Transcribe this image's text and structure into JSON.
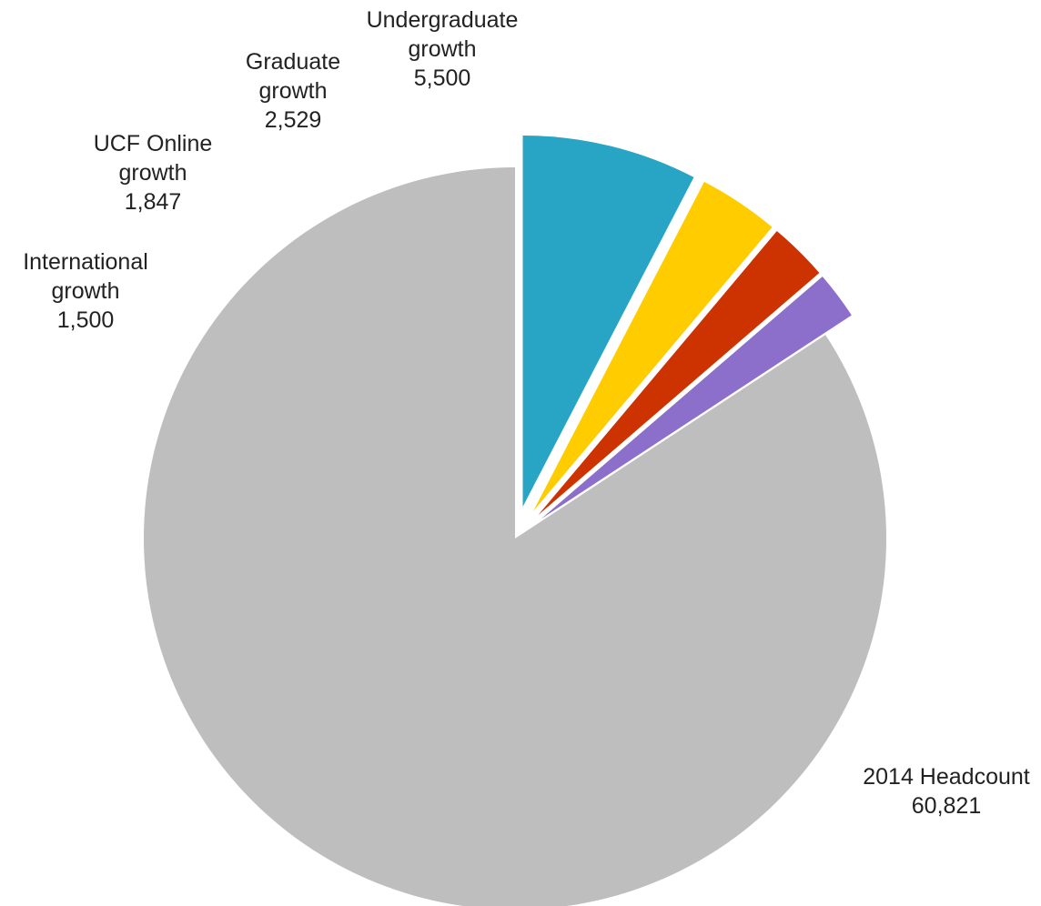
{
  "chart_data": {
    "type": "pie",
    "title": "",
    "start_angle_deg": 0,
    "direction": "counterclockwise",
    "slices": [
      {
        "name": "2014 Headcount",
        "value": 60821,
        "value_label": "60,821",
        "label_lines": [
          "2014 Headcount",
          "60,821"
        ],
        "color": "#bebebe",
        "exploded": false
      },
      {
        "name": "International growth",
        "value": 1500,
        "value_label": "1,500",
        "label_lines": [
          "International",
          "growth",
          "1,500"
        ],
        "color": "#8b6fcb",
        "exploded": true
      },
      {
        "name": "UCF Online growth",
        "value": 1847,
        "value_label": "1,847",
        "label_lines": [
          "UCF Online",
          "growth",
          "1,847"
        ],
        "color": "#cc3300",
        "exploded": true
      },
      {
        "name": "Graduate growth",
        "value": 2529,
        "value_label": "2,529",
        "label_lines": [
          "Graduate",
          "growth",
          "2,529"
        ],
        "color": "#ffcc00",
        "exploded": true
      },
      {
        "name": "Undergraduate growth",
        "value": 5500,
        "value_label": "5,500",
        "label_lines": [
          "Undergraduate",
          "growth",
          "5,500"
        ],
        "color": "#28a5c5",
        "exploded": true
      }
    ]
  }
}
